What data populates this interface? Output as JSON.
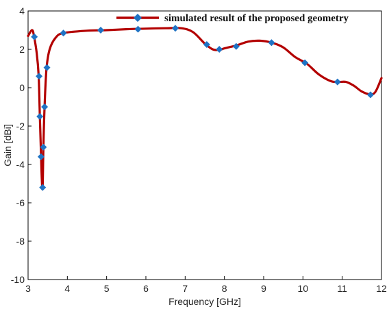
{
  "chart_data": {
    "type": "line",
    "title": "",
    "xlabel": "Frequency [GHz]",
    "ylabel": "Gain [dBi]",
    "xlim": [
      3,
      12
    ],
    "ylim": [
      -10,
      4
    ],
    "xticks": [
      "3",
      "4",
      "5",
      "6",
      "7",
      "8",
      "9",
      "10",
      "11",
      "12"
    ],
    "yticks": [
      "4",
      "2",
      "0",
      "-2",
      "-4",
      "-6",
      "-8",
      "-10"
    ],
    "grid": false,
    "legend_position": "top-right",
    "series": [
      {
        "name": "simulated result of the proposed geometry",
        "color": "#b30000",
        "marker_color": "#1f73c4",
        "marker": "diamond",
        "curve": [
          [
            3.0,
            2.7
          ],
          [
            3.1,
            3.0
          ],
          [
            3.15,
            2.7
          ],
          [
            3.22,
            1.8
          ],
          [
            3.27,
            0.6
          ],
          [
            3.3,
            -1.5
          ],
          [
            3.33,
            -3.5
          ],
          [
            3.35,
            -4.8
          ],
          [
            3.37,
            -5.2
          ],
          [
            3.39,
            -3.1
          ],
          [
            3.42,
            -1.0
          ],
          [
            3.47,
            1.0
          ],
          [
            3.55,
            2.0
          ],
          [
            3.7,
            2.6
          ],
          [
            3.9,
            2.85
          ],
          [
            4.5,
            2.97
          ],
          [
            5.0,
            3.0
          ],
          [
            5.5,
            3.05
          ],
          [
            6.0,
            3.08
          ],
          [
            6.5,
            3.1
          ],
          [
            6.9,
            3.1
          ],
          [
            7.2,
            2.9
          ],
          [
            7.5,
            2.3
          ],
          [
            7.7,
            2.0
          ],
          [
            7.87,
            1.97
          ],
          [
            8.0,
            2.05
          ],
          [
            8.3,
            2.2
          ],
          [
            8.6,
            2.4
          ],
          [
            8.9,
            2.45
          ],
          [
            9.2,
            2.35
          ],
          [
            9.5,
            2.1
          ],
          [
            9.8,
            1.6
          ],
          [
            10.1,
            1.25
          ],
          [
            10.4,
            0.7
          ],
          [
            10.7,
            0.35
          ],
          [
            10.9,
            0.3
          ],
          [
            11.1,
            0.3
          ],
          [
            11.3,
            0.1
          ],
          [
            11.5,
            -0.2
          ],
          [
            11.72,
            -0.35
          ],
          [
            11.85,
            -0.2
          ],
          [
            12.0,
            0.5
          ]
        ],
        "markers": [
          [
            3.16,
            2.65
          ],
          [
            3.28,
            0.6
          ],
          [
            3.3,
            -1.5
          ],
          [
            3.33,
            -3.6
          ],
          [
            3.37,
            -5.2
          ],
          [
            3.39,
            -3.1
          ],
          [
            3.42,
            -1.0
          ],
          [
            3.48,
            1.05
          ],
          [
            3.9,
            2.85
          ],
          [
            4.85,
            3.0
          ],
          [
            5.8,
            3.05
          ],
          [
            6.75,
            3.1
          ],
          [
            7.55,
            2.25
          ],
          [
            7.87,
            2.0
          ],
          [
            8.3,
            2.15
          ],
          [
            9.2,
            2.35
          ],
          [
            10.05,
            1.3
          ],
          [
            10.88,
            0.3
          ],
          [
            11.72,
            -0.37
          ]
        ]
      }
    ]
  }
}
